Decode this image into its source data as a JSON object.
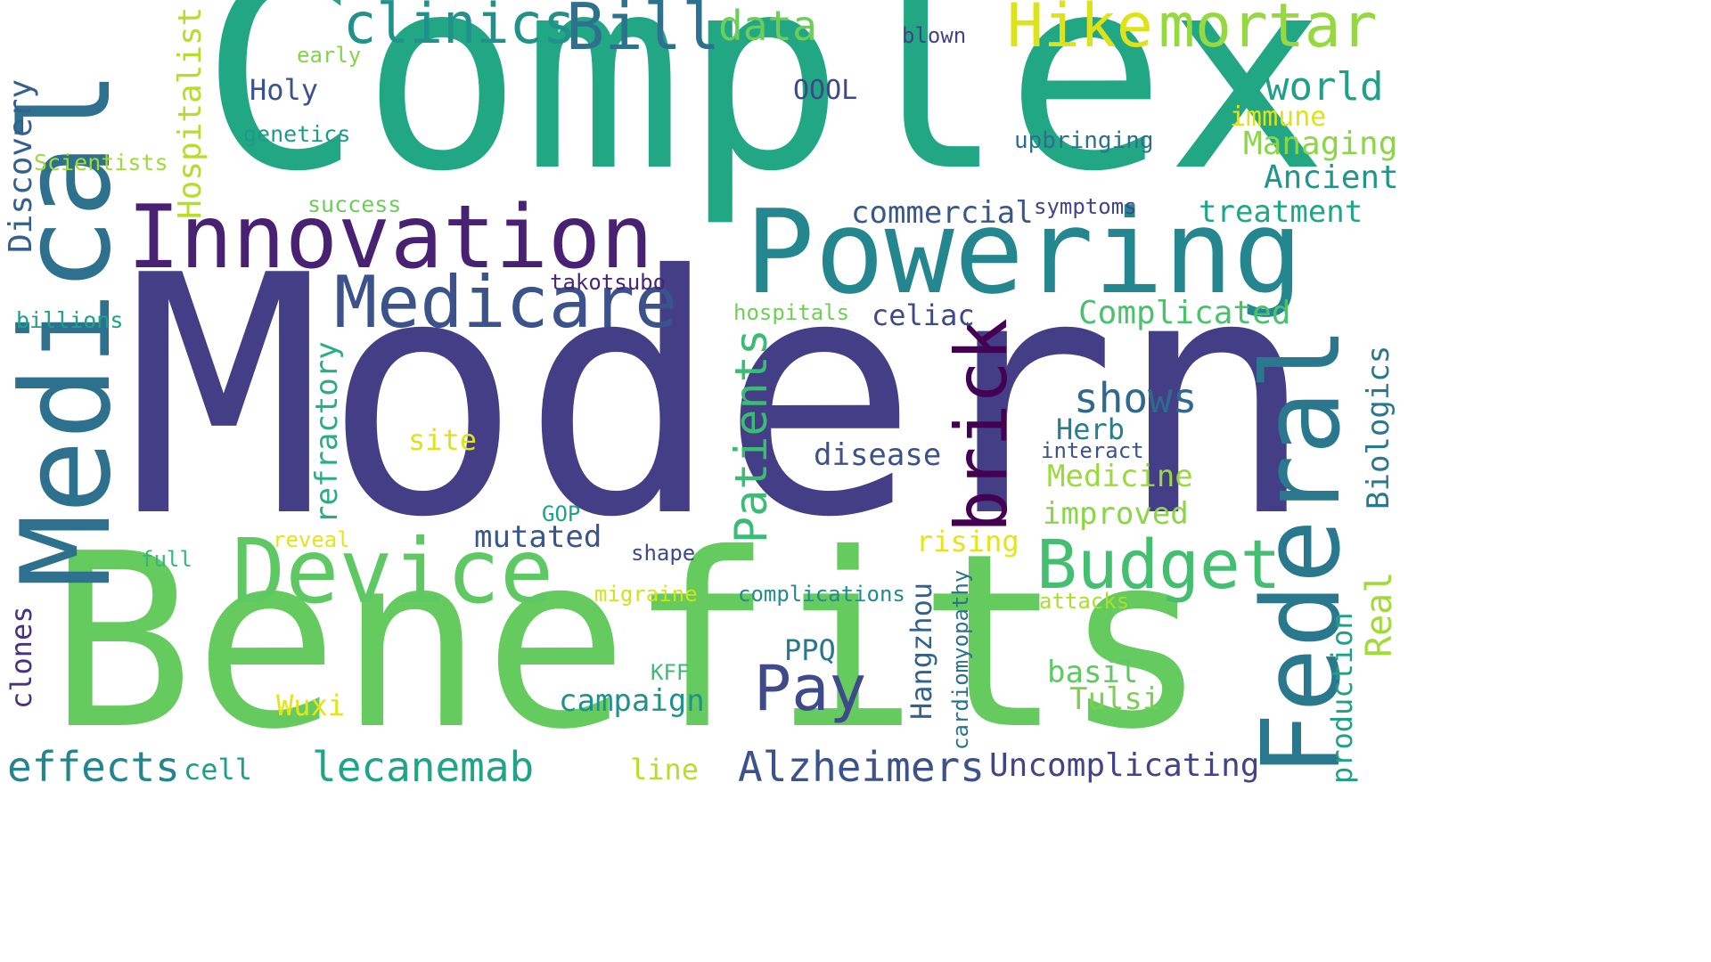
{
  "words": [
    {
      "text": "Modern",
      "color": "#433e85"
    },
    {
      "text": "Complex",
      "color": "#22a785"
    },
    {
      "text": "Benefits",
      "color": "#65cb5e"
    },
    {
      "text": "Medical",
      "color": "#2d718e"
    },
    {
      "text": "Powering",
      "color": "#24868e"
    },
    {
      "text": "Innovation",
      "color": "#482173"
    },
    {
      "text": "Federal",
      "color": "#2a788e"
    },
    {
      "text": "Device",
      "color": "#5ec962"
    },
    {
      "text": "Medicare",
      "color": "#3b528b"
    },
    {
      "text": "Budget",
      "color": "#44bf70"
    },
    {
      "text": "brick",
      "color": "#440154"
    },
    {
      "text": "Pay",
      "color": "#3e4a89"
    },
    {
      "text": "Bill",
      "color": "#2c728e"
    },
    {
      "text": "clinics",
      "color": "#21918c"
    },
    {
      "text": "Hike",
      "color": "#dde318"
    },
    {
      "text": "mortar",
      "color": "#95d840"
    },
    {
      "text": "Patients",
      "color": "#3bbb75"
    },
    {
      "text": "Alzheimers",
      "color": "#3b528b"
    },
    {
      "text": "lecanemab",
      "color": "#20a386"
    },
    {
      "text": "effects",
      "color": "#25858e"
    },
    {
      "text": "shows",
      "color": "#31688e"
    },
    {
      "text": "data",
      "color": "#6ccd5a"
    },
    {
      "text": "world",
      "color": "#1fa088"
    },
    {
      "text": "Uncomplicating",
      "color": "#414487"
    },
    {
      "text": "Complicated",
      "color": "#4ac16d"
    },
    {
      "text": "Discovery",
      "color": "#355f8d"
    },
    {
      "text": "Hospitalist",
      "color": "#b5de2b"
    },
    {
      "text": "Managing",
      "color": "#8bd646"
    },
    {
      "text": "Ancient",
      "color": "#1f968b"
    },
    {
      "text": "treatment",
      "color": "#21a685"
    },
    {
      "text": "commercial",
      "color": "#38588c"
    },
    {
      "text": "mutated",
      "color": "#39568c"
    },
    {
      "text": "campaign",
      "color": "#21918c"
    },
    {
      "text": "Medicine",
      "color": "#9bd93c"
    },
    {
      "text": "improved",
      "color": "#8bd646"
    },
    {
      "text": "refractory",
      "color": "#29af7f"
    },
    {
      "text": "Biologics",
      "color": "#2a788e"
    },
    {
      "text": "Real",
      "color": "#a2da37"
    },
    {
      "text": "production",
      "color": "#1fa188"
    },
    {
      "text": "Hangzhou",
      "color": "#33638d"
    },
    {
      "text": "basil",
      "color": "#5ec962"
    },
    {
      "text": "Tulsi",
      "color": "#7ad151"
    },
    {
      "text": "Herb",
      "color": "#287d8e"
    },
    {
      "text": "disease",
      "color": "#3b528b"
    },
    {
      "text": "celiac",
      "color": "#3e4989"
    },
    {
      "text": "Holy",
      "color": "#3b528b"
    },
    {
      "text": "clones",
      "color": "#46327e"
    },
    {
      "text": "cell",
      "color": "#1f9e89"
    },
    {
      "text": "rising",
      "color": "#e5e419"
    },
    {
      "text": "site",
      "color": "#dde318"
    },
    {
      "text": "Wuxi",
      "color": "#e5e419"
    },
    {
      "text": "PPQ",
      "color": "#2a788e"
    },
    {
      "text": "line",
      "color": "#b8de29"
    },
    {
      "text": "OOOL",
      "color": "#3e4989"
    },
    {
      "text": "immune",
      "color": "#dde318"
    },
    {
      "text": "upbringing",
      "color": "#2d708e"
    },
    {
      "text": "Scientists",
      "color": "#9fda3a"
    },
    {
      "text": "genetics",
      "color": "#1f9a8a"
    },
    {
      "text": "blown",
      "color": "#414487"
    },
    {
      "text": "early",
      "color": "#84d44b"
    },
    {
      "text": "success",
      "color": "#6ccd5a"
    },
    {
      "text": "symptoms",
      "color": "#414487"
    },
    {
      "text": "takotsubo",
      "color": "#482475"
    },
    {
      "text": "billions",
      "color": "#1fa088"
    },
    {
      "text": "hospitals",
      "color": "#6ece58"
    },
    {
      "text": "interact",
      "color": "#3b528b"
    },
    {
      "text": "GOP",
      "color": "#1fa188"
    },
    {
      "text": "reveal",
      "color": "#e5e419"
    },
    {
      "text": "full",
      "color": "#35b779"
    },
    {
      "text": "shape",
      "color": "#3e4a89"
    },
    {
      "text": "migraine",
      "color": "#d2e21b"
    },
    {
      "text": "complications",
      "color": "#238a8d"
    },
    {
      "text": "attacks",
      "color": "#addc30"
    },
    {
      "text": "cardiomyopathy",
      "color": "#2c728e"
    },
    {
      "text": "KFF",
      "color": "#3bbb75"
    }
  ]
}
